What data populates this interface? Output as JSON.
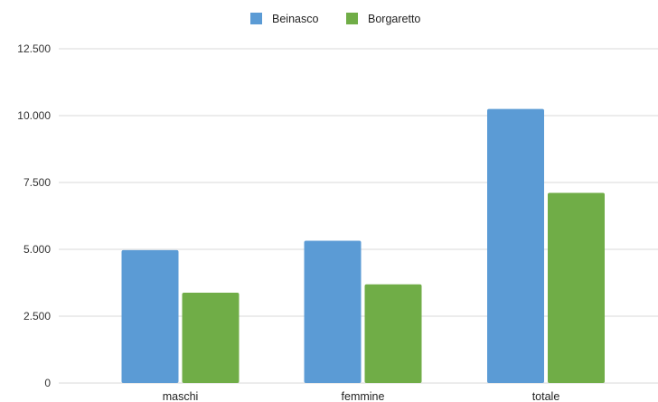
{
  "chart_data": {
    "type": "bar",
    "title": "",
    "xlabel": "",
    "ylabel": "",
    "categories": [
      "maschi",
      "femmine",
      "totale"
    ],
    "series": [
      {
        "name": "Beinasco",
        "color": "#5b9bd5",
        "values": [
          4970,
          5320,
          10250
        ]
      },
      {
        "name": "Borgaretto",
        "color": "#70ad47",
        "values": [
          3380,
          3690,
          7110
        ]
      }
    ],
    "ylim": [
      0,
      12500
    ],
    "yticks": [
      0,
      2500,
      5000,
      7500,
      10000,
      12500
    ],
    "ytick_labels": [
      "0",
      "2.500",
      "5.000",
      "7.500",
      "10.000",
      "12.500"
    ],
    "grid": true,
    "legend_position": "top-center"
  }
}
